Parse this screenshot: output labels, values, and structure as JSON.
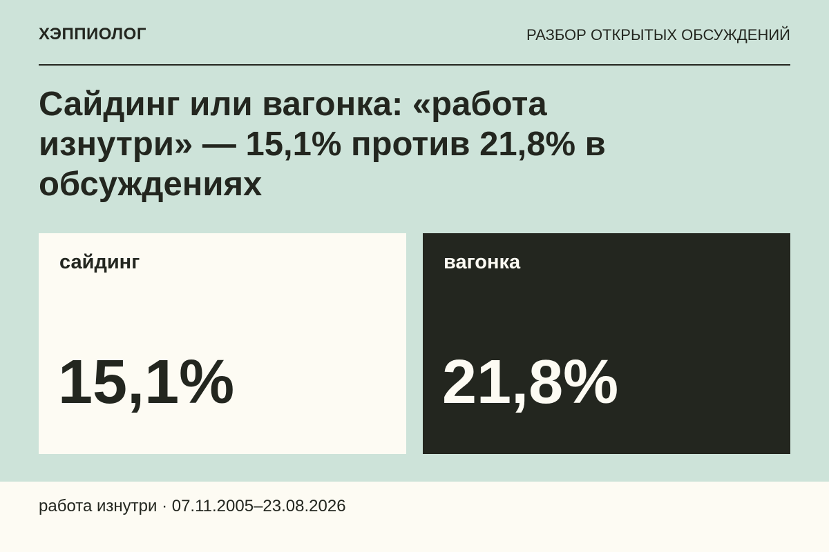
{
  "header": {
    "brand": "ХЭППИОЛОГ",
    "section": "РАЗБОР ОТКРЫТЫХ ОБСУЖДЕНИЙ"
  },
  "title": "Сайдинг или вагонка: «работа изнутри» — 15,1% против 21,8% в обсуждениях",
  "cards": [
    {
      "label": "сайдинг",
      "value": "15,1%"
    },
    {
      "label": "вагонка",
      "value": "21,8%"
    }
  ],
  "footer": "работа изнутри · 07.11.2005–23.08.2026"
}
